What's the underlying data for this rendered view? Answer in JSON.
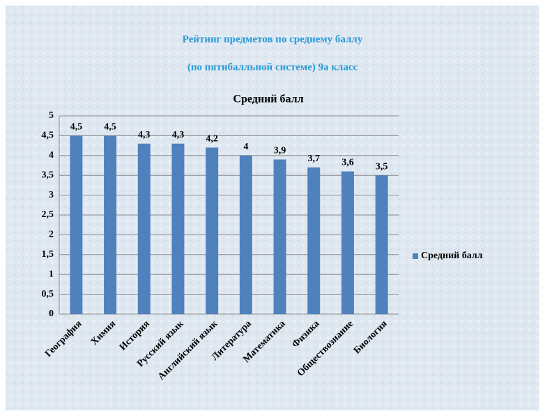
{
  "chart_data": {
    "type": "bar",
    "title": "Рейтинг предметов по среднему баллу",
    "subtitle": "(по пятибалльной системе)  9а класс",
    "chart_title": "Средний балл",
    "categories": [
      "География",
      "Химия",
      "История",
      "Русский язык",
      "Английский язык",
      "Литература",
      "Математика",
      "Физика",
      "Обществознание",
      "Биология"
    ],
    "series": [
      {
        "name": "Средний балл",
        "color": "#4f81bd",
        "values": [
          4.5,
          4.5,
          4.3,
          4.3,
          4.2,
          4,
          3.9,
          3.7,
          3.6,
          3.5
        ],
        "value_labels": [
          "4,5",
          "4,5",
          "4,3",
          "4,3",
          "4,2",
          "4",
          "3,9",
          "3,7",
          "3,6",
          "3,5"
        ]
      }
    ],
    "ylim": [
      0,
      5
    ],
    "yticks": [
      0,
      {
        "value": 0.5,
        "label": "0,5"
      },
      1,
      {
        "value": 1.5,
        "label": "1,5"
      },
      2,
      {
        "value": 2.5,
        "label": "2,5"
      },
      3,
      {
        "value": 3.5,
        "label": "3,5"
      },
      4,
      {
        "value": 4.5,
        "label": "4,5"
      },
      5
    ],
    "grid": true,
    "legend": "right"
  }
}
